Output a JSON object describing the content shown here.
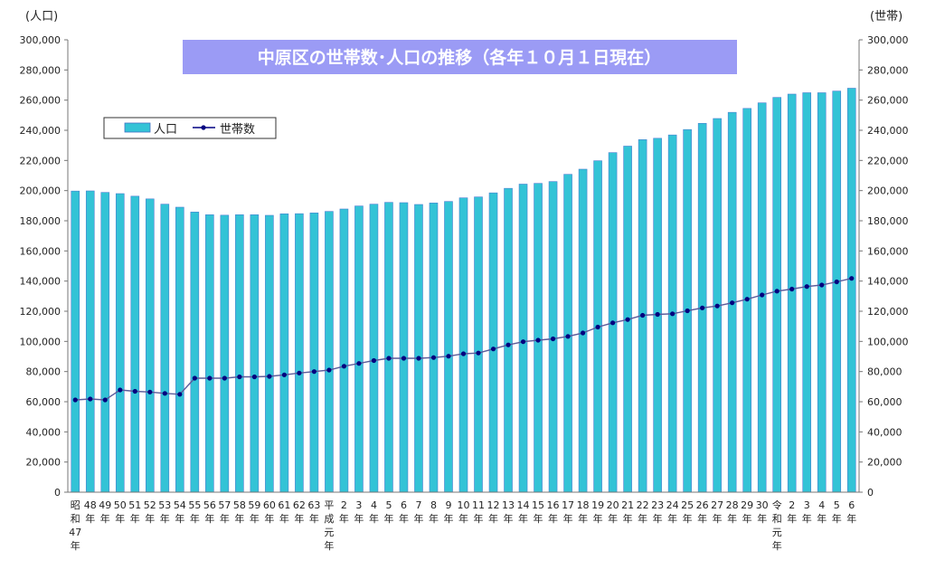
{
  "chart_data": {
    "type": "bar+line",
    "title": "中原区の世帯数･人口の推移（各年１０月１日現在）",
    "ylabel_left": "(人口)",
    "ylabel_right": "(世帯)",
    "ylim": [
      0,
      300000
    ],
    "yticks": [
      "0",
      "20,000",
      "40,000",
      "60,000",
      "80,000",
      "100,000",
      "120,000",
      "140,000",
      "160,000",
      "180,000",
      "200,000",
      "220,000",
      "240,000",
      "260,000",
      "280,000",
      "300,000"
    ],
    "legend_position": "top-left",
    "grid": false,
    "categories": [
      "昭和47年",
      "48年",
      "49年",
      "50年",
      "51年",
      "52年",
      "53年",
      "54年",
      "55年",
      "56年",
      "57年",
      "58年",
      "59年",
      "60年",
      "61年",
      "62年",
      "63年",
      "平成元年",
      "2年",
      "3年",
      "4年",
      "5年",
      "6年",
      "7年",
      "8年",
      "9年",
      "10年",
      "11年",
      "12年",
      "13年",
      "14年",
      "15年",
      "16年",
      "17年",
      "18年",
      "19年",
      "20年",
      "21年",
      "22年",
      "23年",
      "24年",
      "25年",
      "26年",
      "27年",
      "28年",
      "29年",
      "30年",
      "令和元年",
      "2年",
      "3年",
      "4年",
      "5年",
      "6年"
    ],
    "series": [
      {
        "name": "人口",
        "type": "bar",
        "color": "#33c3d6",
        "values": [
          199700,
          199800,
          198800,
          198000,
          196300,
          194500,
          191000,
          189000,
          185800,
          184000,
          183700,
          184000,
          184000,
          183600,
          184600,
          184700,
          185200,
          186200,
          187800,
          189800,
          191000,
          192200,
          192000,
          190800,
          191800,
          192800,
          195200,
          195800,
          198500,
          201500,
          204300,
          204800,
          206000,
          210800,
          214200,
          219800,
          225200,
          229500,
          233800,
          234700,
          236900,
          240500,
          244600,
          247800,
          251900,
          254500,
          258200,
          261800,
          264000,
          264900,
          264900,
          266000,
          267900
        ]
      },
      {
        "name": "世帯数",
        "type": "line",
        "color": "#000080",
        "values": [
          61200,
          61800,
          61200,
          67800,
          66900,
          66400,
          65500,
          64900,
          75600,
          75600,
          75600,
          76500,
          76500,
          76800,
          77800,
          79000,
          80000,
          81000,
          83500,
          85400,
          87300,
          88800,
          88800,
          88800,
          89300,
          90200,
          91800,
          92300,
          95000,
          97700,
          99800,
          100800,
          101700,
          103300,
          105600,
          109500,
          112300,
          114500,
          117300,
          117900,
          118300,
          120300,
          122200,
          123500,
          125600,
          128000,
          130800,
          133300,
          134700,
          136400,
          137400,
          139500,
          141800
        ]
      }
    ],
    "title_box_color": "#9b9bf5"
  }
}
